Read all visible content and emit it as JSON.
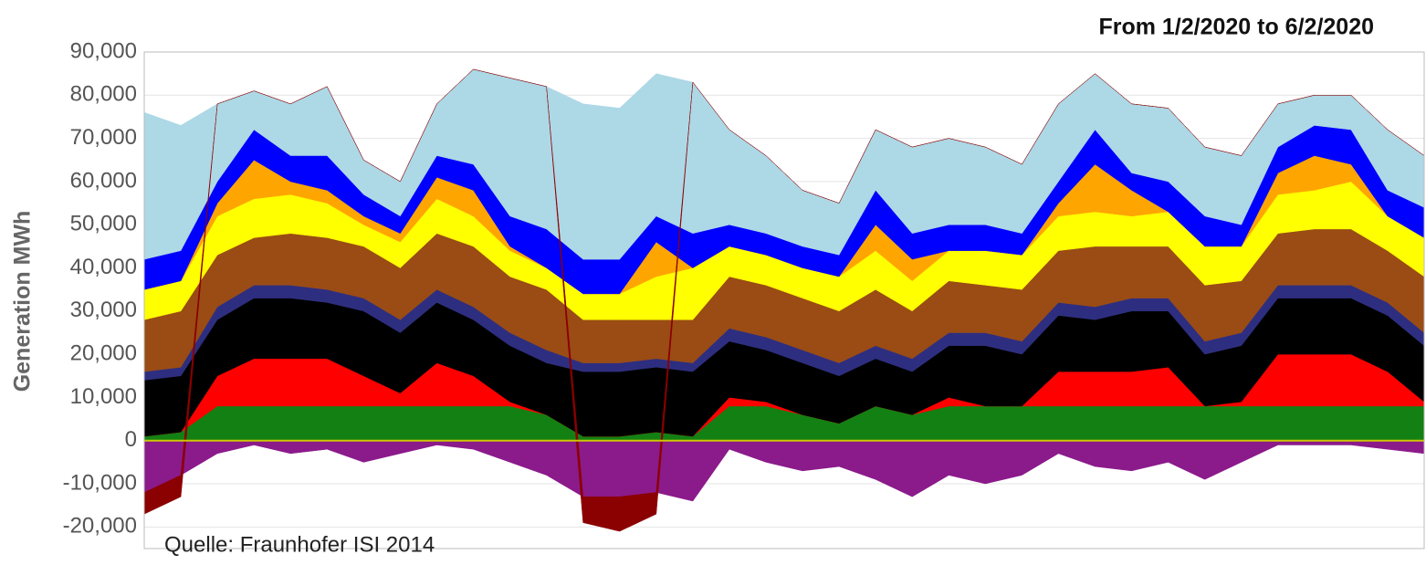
{
  "chart_data": {
    "type": "stacked-area",
    "title": "From 1/2/2020 to 6/2/2020",
    "y_label": "Generation MWh",
    "annotation": "Quelle: Fraunhofer ISI 2014",
    "categories": [
      null,
      null,
      null,
      null,
      null,
      null,
      null,
      null,
      null,
      null,
      null,
      null,
      null,
      null,
      null,
      null,
      null,
      null,
      null,
      null,
      null,
      null,
      null,
      null,
      null,
      null,
      null,
      null,
      null,
      null,
      null,
      null,
      null,
      null,
      null,
      null
    ],
    "ylim": [
      -25000,
      90000
    ],
    "yticks": [
      {
        "value": -20000,
        "label": "-20,000"
      },
      {
        "value": -10000,
        "label": "-10,000"
      },
      0,
      {
        "value": 10000,
        "label": "10,000"
      },
      {
        "value": 20000,
        "label": "20,000"
      },
      {
        "value": 30000,
        "label": "30,000"
      },
      {
        "value": 40000,
        "label": "40,000"
      },
      {
        "value": 50000,
        "label": "50,000"
      },
      {
        "value": 60000,
        "label": "60,000"
      },
      {
        "value": 70000,
        "label": "70,000"
      },
      {
        "value": 80000,
        "label": "80,000"
      },
      {
        "value": 90000,
        "label": "90,000"
      }
    ],
    "grid": true,
    "series": [
      {
        "color": "#138013",
        "values": [
          1000,
          2000,
          8000,
          8000,
          8000,
          8000,
          8000,
          8000,
          8000,
          8000,
          8000,
          6000,
          1000,
          1000,
          2000,
          1000,
          8000,
          8000,
          6000,
          4000,
          8000,
          6000,
          8000,
          8000,
          8000,
          8000,
          8000,
          8000,
          8000,
          8000,
          8000,
          8000,
          8000,
          8000,
          8000,
          8000
        ]
      },
      {
        "color": "#ff0000",
        "values": [
          0,
          0,
          7000,
          11000,
          11000,
          11000,
          7000,
          3000,
          10000,
          7000,
          1000,
          0,
          0,
          0,
          0,
          0,
          2000,
          1000,
          0,
          0,
          0,
          0,
          2000,
          0,
          0,
          8000,
          8000,
          8000,
          9000,
          0,
          1000,
          12000,
          12000,
          12000,
          8000,
          1000
        ]
      },
      {
        "color": "#000000",
        "values": [
          13000,
          13000,
          13000,
          14000,
          14000,
          13000,
          15000,
          14000,
          14000,
          13000,
          13000,
          12000,
          15000,
          15000,
          15000,
          15000,
          13000,
          12000,
          12000,
          11000,
          11000,
          10000,
          12000,
          14000,
          12000,
          13000,
          12000,
          14000,
          13000,
          12000,
          13000,
          13000,
          13000,
          13000,
          13000,
          13000
        ]
      },
      {
        "color": "#2e2e80",
        "values": [
          2000,
          2000,
          3000,
          3000,
          3000,
          3000,
          3000,
          3000,
          3000,
          3000,
          3000,
          3000,
          2000,
          2000,
          2000,
          2000,
          3000,
          3000,
          3000,
          3000,
          3000,
          3000,
          3000,
          3000,
          3000,
          3000,
          3000,
          3000,
          3000,
          3000,
          3000,
          3000,
          3000,
          3000,
          3000,
          3000
        ]
      },
      {
        "color": "#9a4c14",
        "values": [
          12000,
          13000,
          12000,
          11000,
          12000,
          12000,
          12000,
          12000,
          13000,
          14000,
          13000,
          14000,
          10000,
          10000,
          9000,
          10000,
          12000,
          12000,
          12000,
          12000,
          13000,
          11000,
          12000,
          11000,
          12000,
          12000,
          14000,
          12000,
          12000,
          13000,
          12000,
          12000,
          13000,
          13000,
          12000,
          13000
        ]
      },
      {
        "color": "#ffff00",
        "values": [
          7000,
          7000,
          9000,
          9000,
          9000,
          8000,
          5000,
          6000,
          8000,
          7000,
          6000,
          5000,
          6000,
          6000,
          10000,
          12000,
          7000,
          7000,
          7000,
          8000,
          9000,
          7000,
          7000,
          8000,
          8000,
          8000,
          8000,
          7000,
          8000,
          9000,
          8000,
          9000,
          9000,
          11000,
          8000,
          9000
        ]
      },
      {
        "color": "#ffa500",
        "values": [
          0,
          0,
          3000,
          9000,
          3000,
          3000,
          2000,
          2000,
          5000,
          6000,
          1000,
          0,
          0,
          0,
          8000,
          0,
          0,
          0,
          0,
          0,
          6000,
          5000,
          0,
          0,
          0,
          3000,
          11000,
          6000,
          0,
          0,
          0,
          5000,
          8000,
          4000,
          0,
          0
        ]
      },
      {
        "color": "#0000ff",
        "values": [
          7000,
          7000,
          5000,
          7000,
          6000,
          8000,
          5000,
          4000,
          5000,
          6000,
          7000,
          9000,
          8000,
          8000,
          6000,
          8000,
          5000,
          5000,
          5000,
          5000,
          8000,
          6000,
          6000,
          6000,
          5000,
          5000,
          8000,
          4000,
          7000,
          7000,
          5000,
          6000,
          7000,
          8000,
          6000,
          7000
        ]
      },
      {
        "color": "#add8e6",
        "values": [
          34000,
          29000,
          18000,
          9000,
          12000,
          16000,
          8000,
          8000,
          12000,
          22000,
          32000,
          33000,
          36000,
          35000,
          33000,
          35000,
          22000,
          18000,
          13000,
          12000,
          14000,
          20000,
          20000,
          18000,
          16000,
          18000,
          13000,
          16000,
          17000,
          16000,
          16000,
          10000,
          7000,
          8000,
          14000,
          12000
        ]
      },
      {
        "color": "#8b1a8b",
        "values": [
          -12000,
          -8000,
          -3000,
          -1000,
          -3000,
          -2000,
          -5000,
          -3000,
          -1000,
          -2000,
          -5000,
          -8000,
          -13000,
          -13000,
          -12000,
          -14000,
          -2000,
          -5000,
          -7000,
          -6000,
          -9000,
          -13000,
          -8000,
          -10000,
          -8000,
          -3000,
          -6000,
          -7000,
          -5000,
          -9000,
          -5000,
          -1000,
          -1000,
          -1000,
          -2000,
          -3000
        ]
      },
      {
        "color": "#8b0000",
        "values": [
          -5000,
          -5000,
          0,
          0,
          0,
          0,
          0,
          0,
          0,
          0,
          0,
          0,
          -6000,
          -8000,
          -5000,
          0,
          0,
          0,
          0,
          0,
          0,
          0,
          0,
          0,
          0,
          0,
          0,
          0,
          0,
          0,
          0,
          0,
          0,
          0,
          0,
          0
        ]
      }
    ]
  }
}
